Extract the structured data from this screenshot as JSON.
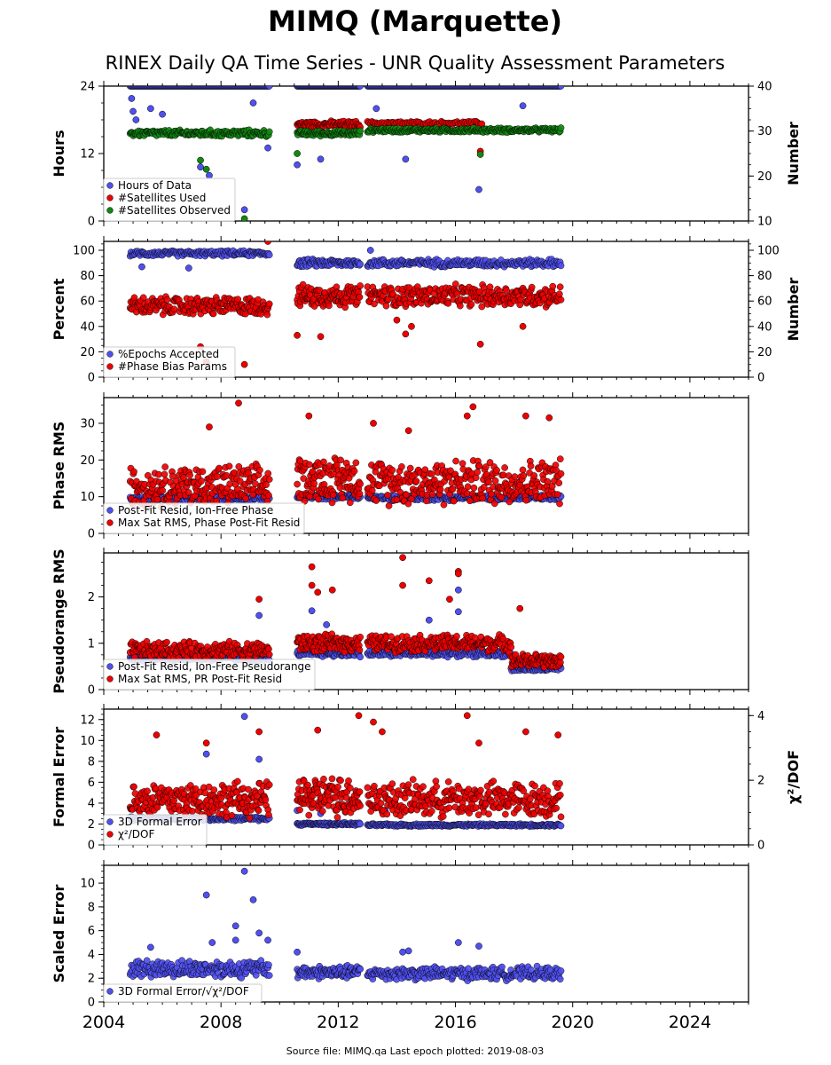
{
  "figure": {
    "title": "MIMQ (Marquette)",
    "subtitle": "RINEX Daily QA Time Series - UNR Quality Assessment Parameters",
    "footer": "Source file: MIMQ.qa Last epoch plotted: 2019-08-03"
  },
  "colors": {
    "blue": "#5050f0",
    "red": "#ee0000",
    "green": "#118811",
    "edge": "#000000"
  },
  "chart_data": [
    {
      "type": "scatter",
      "ylabel": "Hours",
      "y2label": "Number",
      "xlim": [
        2004,
        2026
      ],
      "ylim": [
        0,
        24
      ],
      "y2lim": [
        10,
        40
      ],
      "yticks": [
        "0",
        "12",
        "24"
      ],
      "y2ticks": [
        "10",
        "20",
        "30",
        "40"
      ],
      "legend_position": "bottom-left",
      "grid": false,
      "series": [
        {
          "name": "Hours of Data",
          "color": "blue",
          "axis": "left",
          "segments": [
            {
              "x": [
                2004.9,
                2009.65
              ],
              "base": 24.0,
              "spread": 0.0,
              "count": 170
            },
            {
              "x": [
                2010.6,
                2012.75
              ],
              "base": 24.0,
              "spread": 0.0,
              "count": 90
            },
            {
              "x": [
                2013.0,
                2019.6
              ],
              "base": 24.0,
              "spread": 0.0,
              "count": 230
            }
          ],
          "outliers": [
            [
              2004.95,
              21.8
            ],
            [
              2005.0,
              19.5
            ],
            [
              2005.1,
              18.0
            ],
            [
              2005.6,
              20.0
            ],
            [
              2006.0,
              19.0
            ],
            [
              2007.3,
              9.6
            ],
            [
              2007.6,
              8.1
            ],
            [
              2008.8,
              2.0
            ],
            [
              2009.1,
              21.0
            ],
            [
              2009.6,
              13.0
            ],
            [
              2010.6,
              10.0
            ],
            [
              2011.4,
              11.0
            ],
            [
              2013.3,
              20.0
            ],
            [
              2013.6,
              17.0
            ],
            [
              2014.3,
              11.0
            ],
            [
              2016.8,
              5.6
            ],
            [
              2018.3,
              20.5
            ]
          ]
        },
        {
          "name": "#Satellites Used",
          "color": "red",
          "axis": "right",
          "segments": [
            {
              "x": [
                2010.6,
                2012.75
              ],
              "base": 31.5,
              "spread": 1.2,
              "count": 90
            },
            {
              "x": [
                2013.0,
                2016.9
              ],
              "base": 31.8,
              "spread": 0.6,
              "count": 80
            }
          ],
          "outliers": [
            [
              2016.85,
              25.5
            ]
          ]
        },
        {
          "name": "#Satellites Observed",
          "color": "green",
          "axis": "right",
          "segments": [
            {
              "x": [
                2004.9,
                2009.65
              ],
              "base": 29.5,
              "spread": 1.2,
              "count": 180
            },
            {
              "x": [
                2010.6,
                2012.75
              ],
              "base": 29.5,
              "spread": 1.0,
              "count": 90
            },
            {
              "x": [
                2013.0,
                2019.6
              ],
              "base": 30.2,
              "spread": 0.8,
              "count": 240
            }
          ],
          "outliers": [
            [
              2007.3,
              23.5
            ],
            [
              2007.5,
              21.5
            ],
            [
              2008.8,
              10.5
            ],
            [
              2010.6,
              25.0
            ],
            [
              2016.85,
              24.8
            ]
          ]
        }
      ],
      "legend": [
        "Hours of Data",
        "#Satellites Used",
        "#Satellites Observed"
      ]
    },
    {
      "type": "scatter",
      "ylabel": "Percent",
      "y2label": "Number",
      "xlim": [
        2004,
        2026
      ],
      "ylim": [
        0,
        107
      ],
      "y2lim": [
        0,
        107
      ],
      "yticks": [
        "0",
        "20",
        "40",
        "60",
        "80",
        "100"
      ],
      "y2ticks": [
        "0",
        "20",
        "40",
        "60",
        "80",
        "100"
      ],
      "legend_position": "bottom-left",
      "grid": false,
      "series": [
        {
          "name": "%Epochs Accepted",
          "color": "blue",
          "axis": "left",
          "segments": [
            {
              "x": [
                2004.9,
                2009.65
              ],
              "base": 97.5,
              "spread": 3.5,
              "count": 170
            },
            {
              "x": [
                2010.6,
                2012.75
              ],
              "base": 90.0,
              "spread": 5.0,
              "count": 90
            },
            {
              "x": [
                2013.0,
                2019.6
              ],
              "base": 90.0,
              "spread": 5.0,
              "count": 230
            }
          ],
          "outliers": [
            [
              2005.3,
              87.0
            ],
            [
              2006.9,
              86.0
            ],
            [
              2013.1,
              100.0
            ]
          ]
        },
        {
          "name": "#Phase Bias Params",
          "color": "red",
          "axis": "right",
          "segments": [
            {
              "x": [
                2004.9,
                2009.65
              ],
              "base": 56.0,
              "spread": 12.0,
              "count": 200
            },
            {
              "x": [
                2010.6,
                2012.75
              ],
              "base": 64.0,
              "spread": 14.0,
              "count": 110
            },
            {
              "x": [
                2013.0,
                2019.6
              ],
              "base": 64.0,
              "spread": 14.0,
              "count": 260
            }
          ],
          "outliers": [
            [
              2007.3,
              24.0
            ],
            [
              2007.5,
              12.0
            ],
            [
              2008.8,
              10.0
            ],
            [
              2009.6,
              107.0
            ],
            [
              2010.6,
              33.0
            ],
            [
              2011.4,
              32.0
            ],
            [
              2014.0,
              45.0
            ],
            [
              2014.3,
              34.0
            ],
            [
              2014.5,
              40.0
            ],
            [
              2016.85,
              26.0
            ],
            [
              2018.3,
              40.0
            ]
          ]
        }
      ],
      "legend": [
        "%Epochs Accepted",
        "#Phase Bias Params"
      ]
    },
    {
      "type": "scatter",
      "ylabel": "Phase RMS",
      "xlim": [
        2004,
        2026
      ],
      "ylim": [
        0,
        37
      ],
      "yticks": [
        "0",
        "10",
        "20",
        "30"
      ],
      "legend_position": "bottom-left",
      "grid": false,
      "series": [
        {
          "name": "Post-Fit Resid, Ion-Free Phase",
          "color": "blue",
          "segments": [
            {
              "x": [
                2004.9,
                2009.65
              ],
              "base": 9.5,
              "spread": 1.0,
              "count": 170
            },
            {
              "x": [
                2010.6,
                2012.75
              ],
              "base": 10.0,
              "spread": 1.2,
              "count": 90
            },
            {
              "x": [
                2013.0,
                2019.6
              ],
              "base": 9.7,
              "spread": 1.2,
              "count": 230
            }
          ],
          "outliers": []
        },
        {
          "name": "Max Sat RMS, Phase Post-Fit Resid",
          "color": "red",
          "segments": [
            {
              "x": [
                2004.9,
                2009.65
              ],
              "base": 13.0,
              "spread": 9.0,
              "count": 220
            },
            {
              "x": [
                2010.6,
                2012.75
              ],
              "base": 15.0,
              "spread": 10.0,
              "count": 120
            },
            {
              "x": [
                2013.0,
                2019.6
              ],
              "base": 14.0,
              "spread": 10.0,
              "count": 290
            }
          ],
          "outliers": [
            [
              2007.6,
              29.0
            ],
            [
              2008.6,
              35.5
            ],
            [
              2011.0,
              32.0
            ],
            [
              2013.2,
              30.0
            ],
            [
              2014.4,
              28.0
            ],
            [
              2016.6,
              34.5
            ],
            [
              2016.4,
              32.0
            ],
            [
              2018.4,
              32.0
            ],
            [
              2019.2,
              31.5
            ]
          ]
        }
      ],
      "legend": [
        "Post-Fit Resid, Ion-Free Phase",
        "Max Sat RMS, Phase Post-Fit Resid"
      ]
    },
    {
      "type": "scatter",
      "ylabel": "Pseudorange RMS",
      "xlim": [
        2004,
        2026
      ],
      "ylim": [
        0,
        2.95
      ],
      "yticks": [
        "0",
        "1",
        "2"
      ],
      "legend_position": "bottom-left",
      "grid": false,
      "series": [
        {
          "name": "Post-Fit Resid, Ion-Free Pseudorange",
          "color": "blue",
          "segments": [
            {
              "x": [
                2004.9,
                2009.65
              ],
              "base": 0.68,
              "spread": 0.1,
              "count": 170
            },
            {
              "x": [
                2010.6,
                2012.75
              ],
              "base": 0.78,
              "spread": 0.12,
              "count": 90
            },
            {
              "x": [
                2013.0,
                2017.9
              ],
              "base": 0.78,
              "spread": 0.12,
              "count": 180
            },
            {
              "x": [
                2017.9,
                2019.6
              ],
              "base": 0.45,
              "spread": 0.1,
              "count": 70
            }
          ],
          "outliers": [
            [
              2009.3,
              1.6
            ],
            [
              2011.1,
              1.7
            ],
            [
              2011.6,
              1.4
            ],
            [
              2015.1,
              1.5
            ],
            [
              2016.1,
              2.15
            ],
            [
              2016.1,
              1.68
            ]
          ]
        },
        {
          "name": "Max Sat RMS, PR Post-Fit Resid",
          "color": "red",
          "segments": [
            {
              "x": [
                2004.9,
                2009.65
              ],
              "base": 0.85,
              "spread": 0.3,
              "count": 210
            },
            {
              "x": [
                2010.6,
                2012.75
              ],
              "base": 1.0,
              "spread": 0.3,
              "count": 110
            },
            {
              "x": [
                2013.0,
                2017.9
              ],
              "base": 1.0,
              "spread": 0.3,
              "count": 220
            },
            {
              "x": [
                2017.9,
                2019.6
              ],
              "base": 0.62,
              "spread": 0.25,
              "count": 90
            }
          ],
          "outliers": [
            [
              2009.3,
              1.95
            ],
            [
              2011.1,
              2.65
            ],
            [
              2011.1,
              2.25
            ],
            [
              2011.3,
              2.1
            ],
            [
              2011.8,
              2.15
            ],
            [
              2014.2,
              2.85
            ],
            [
              2014.2,
              2.25
            ],
            [
              2015.1,
              2.35
            ],
            [
              2015.8,
              1.95
            ],
            [
              2016.1,
              2.55
            ],
            [
              2016.1,
              2.5
            ],
            [
              2018.2,
              1.75
            ]
          ]
        }
      ],
      "legend": [
        "Post-Fit Resid, Ion-Free Pseudorange",
        "Max Sat RMS, PR Post-Fit Resid"
      ]
    },
    {
      "type": "scatter",
      "ylabel": "Formal Error",
      "y2label": "χ²/DOF",
      "xlim": [
        2004,
        2026
      ],
      "ylim": [
        0,
        13
      ],
      "y2lim": [
        0,
        4.2
      ],
      "yticks": [
        "0",
        "2",
        "4",
        "6",
        "8",
        "10",
        "12"
      ],
      "y2ticks": [
        "0",
        "2",
        "4"
      ],
      "legend_position": "bottom-left",
      "grid": false,
      "series": [
        {
          "name": "3D Formal Error",
          "color": "blue",
          "axis": "left",
          "segments": [
            {
              "x": [
                2004.9,
                2009.65
              ],
              "base": 2.5,
              "spread": 0.3,
              "count": 170
            },
            {
              "x": [
                2010.6,
                2012.75
              ],
              "base": 2.0,
              "spread": 0.2,
              "count": 90
            },
            {
              "x": [
                2013.0,
                2019.6
              ],
              "base": 1.9,
              "spread": 0.2,
              "count": 230
            }
          ],
          "outliers": [
            [
              2007.5,
              8.7
            ],
            [
              2008.8,
              12.3
            ],
            [
              2009.3,
              8.2
            ],
            [
              2010.6,
              3.3
            ],
            [
              2011.4,
              3.0
            ],
            [
              2013.6,
              3.3
            ],
            [
              2016.5,
              3.4
            ]
          ]
        },
        {
          "name": "χ²/DOF",
          "color": "red",
          "axis": "right",
          "segments": [
            {
              "x": [
                2004.9,
                2009.65
              ],
              "base": 1.4,
              "spread": 0.9,
              "count": 220
            },
            {
              "x": [
                2010.6,
                2012.75
              ],
              "base": 1.5,
              "spread": 1.0,
              "count": 120
            },
            {
              "x": [
                2013.0,
                2019.6
              ],
              "base": 1.4,
              "spread": 0.9,
              "count": 290
            }
          ],
          "outliers": [
            [
              2005.8,
              3.4
            ],
            [
              2007.5,
              3.15
            ],
            [
              2009.3,
              3.5
            ],
            [
              2011.3,
              3.55
            ],
            [
              2012.7,
              4.0
            ],
            [
              2013.2,
              3.8
            ],
            [
              2013.5,
              3.5
            ],
            [
              2016.4,
              4.0
            ],
            [
              2016.8,
              3.15
            ],
            [
              2018.4,
              3.5
            ],
            [
              2019.5,
              3.4
            ]
          ]
        }
      ],
      "legend": [
        "3D Formal Error",
        "χ²/DOF"
      ]
    },
    {
      "type": "scatter",
      "ylabel": "Scaled Error",
      "xlim": [
        2004,
        2026
      ],
      "ylim": [
        0,
        11.5
      ],
      "yticks": [
        "0",
        "2",
        "4",
        "6",
        "8",
        "10"
      ],
      "xticks": [
        "2004",
        "2008",
        "2012",
        "2016",
        "2020",
        "2024"
      ],
      "legend_position": "bottom-left",
      "grid": false,
      "series": [
        {
          "name": "3D Formal Error/√χ²/DOF",
          "color": "blue",
          "segments": [
            {
              "x": [
                2004.9,
                2009.65
              ],
              "base": 2.8,
              "spread": 1.2,
              "count": 200
            },
            {
              "x": [
                2010.6,
                2012.75
              ],
              "base": 2.5,
              "spread": 0.9,
              "count": 100
            },
            {
              "x": [
                2013.0,
                2019.6
              ],
              "base": 2.4,
              "spread": 0.9,
              "count": 260
            }
          ],
          "outliers": [
            [
              2005.6,
              4.6
            ],
            [
              2007.5,
              9.0
            ],
            [
              2007.7,
              5.0
            ],
            [
              2008.5,
              6.4
            ],
            [
              2008.5,
              5.2
            ],
            [
              2008.8,
              11.0
            ],
            [
              2009.1,
              8.6
            ],
            [
              2009.3,
              5.8
            ],
            [
              2009.6,
              5.2
            ],
            [
              2010.6,
              4.2
            ],
            [
              2014.2,
              4.2
            ],
            [
              2014.4,
              4.3
            ],
            [
              2016.1,
              5.0
            ],
            [
              2016.8,
              4.7
            ]
          ]
        }
      ],
      "legend": [
        "3D Formal Error/√χ²/DOF"
      ]
    }
  ]
}
